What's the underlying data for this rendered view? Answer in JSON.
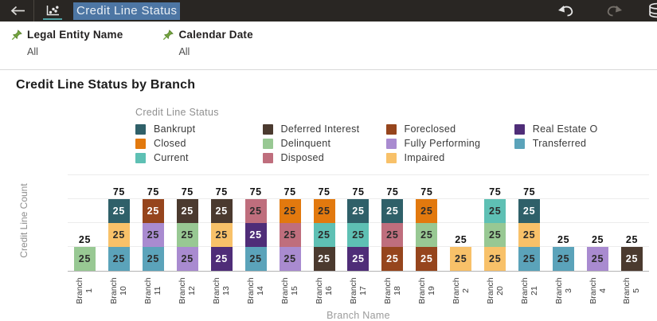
{
  "colors": {
    "topbar_bg": "#292623",
    "title_selection": "#4d76a4",
    "pin_green": "#72a43e",
    "viz_tab_underline": "#4fa3a6"
  },
  "topbar": {
    "title": "Credit Line Status",
    "icons": {
      "back": "back-arrow",
      "viz": "scatter-chart",
      "undo": "undo-arrow",
      "redo": "redo-arrow",
      "data": "database"
    }
  },
  "filters": [
    {
      "label": "Legal Entity Name",
      "value": "All"
    },
    {
      "label": "Calendar Date",
      "value": "All"
    }
  ],
  "chart_data": {
    "type": "bar",
    "stacked": true,
    "title": "Credit Line Status by Branch",
    "legend_title": "Credit Line Status",
    "legend_position": "top",
    "xlabel": "Branch Name",
    "ylabel": "Credit Line Count",
    "ylim": [
      0,
      100
    ],
    "grid": true,
    "statuses": {
      "bankrupt": {
        "label": "Bankrupt",
        "color": "#2f6069",
        "text": "#ffffff"
      },
      "closed": {
        "label": "Closed",
        "color": "#e2790e",
        "text": "#2b2b2b"
      },
      "current": {
        "label": "Current",
        "color": "#5ec0b4",
        "text": "#2b2b2b"
      },
      "deferred_interest": {
        "label": "Deferred Interest",
        "color": "#4b3a2f",
        "text": "#ffffff"
      },
      "delinquent": {
        "label": "Delinquent",
        "color": "#98c893",
        "text": "#2b2b2b"
      },
      "disposed": {
        "label": "Disposed",
        "color": "#bf6e7d",
        "text": "#2b2b2b"
      },
      "foreclosed": {
        "label": "Foreclosed",
        "color": "#96451d",
        "text": "#ffffff"
      },
      "fully_performing": {
        "label": "Fully Performing",
        "color": "#a98bd0",
        "text": "#2b2b2b"
      },
      "impaired": {
        "label": "Impaired",
        "color": "#f8c169",
        "text": "#2b2b2b"
      },
      "real_estate": {
        "label": "Real Estate O",
        "color": "#4f2d78",
        "text": "#ffffff"
      },
      "transferred": {
        "label": "Transferred",
        "color": "#5ba3ba",
        "text": "#2b2b2b"
      }
    },
    "legend_columns": [
      [
        "bankrupt",
        "closed",
        "current"
      ],
      [
        "deferred_interest",
        "delinquent",
        "disposed"
      ],
      [
        "foreclosed",
        "fully_performing",
        "impaired"
      ],
      [
        "real_estate",
        "transferred"
      ]
    ],
    "bars": [
      {
        "category": "Branch 1",
        "total": 25,
        "segments": [
          {
            "key": "delinquent",
            "value": 25
          }
        ]
      },
      {
        "category": "Branch 10",
        "total": 75,
        "segments": [
          {
            "key": "transferred",
            "value": 25
          },
          {
            "key": "impaired",
            "value": 25
          },
          {
            "key": "bankrupt",
            "value": 25
          }
        ]
      },
      {
        "category": "Branch 11",
        "total": 75,
        "segments": [
          {
            "key": "transferred",
            "value": 25
          },
          {
            "key": "fully_performing",
            "value": 25
          },
          {
            "key": "foreclosed",
            "value": 25
          }
        ]
      },
      {
        "category": "Branch 12",
        "total": 75,
        "segments": [
          {
            "key": "fully_performing",
            "value": 25
          },
          {
            "key": "delinquent",
            "value": 25
          },
          {
            "key": "deferred_interest",
            "value": 25
          }
        ]
      },
      {
        "category": "Branch 13",
        "total": 75,
        "segments": [
          {
            "key": "real_estate",
            "value": 25
          },
          {
            "key": "impaired",
            "value": 25
          },
          {
            "key": "deferred_interest",
            "value": 25
          }
        ]
      },
      {
        "category": "Branch 14",
        "total": 75,
        "segments": [
          {
            "key": "transferred",
            "value": 25
          },
          {
            "key": "real_estate",
            "value": 25
          },
          {
            "key": "disposed",
            "value": 25
          }
        ]
      },
      {
        "category": "Branch 15",
        "total": 75,
        "segments": [
          {
            "key": "fully_performing",
            "value": 25
          },
          {
            "key": "disposed",
            "value": 25
          },
          {
            "key": "closed",
            "value": 25
          }
        ]
      },
      {
        "category": "Branch 16",
        "total": 75,
        "segments": [
          {
            "key": "deferred_interest",
            "value": 25
          },
          {
            "key": "current",
            "value": 25
          },
          {
            "key": "closed",
            "value": 25
          }
        ]
      },
      {
        "category": "Branch 17",
        "total": 75,
        "segments": [
          {
            "key": "real_estate",
            "value": 25
          },
          {
            "key": "current",
            "value": 25
          },
          {
            "key": "bankrupt",
            "value": 25
          }
        ]
      },
      {
        "category": "Branch 18",
        "total": 75,
        "segments": [
          {
            "key": "foreclosed",
            "value": 25
          },
          {
            "key": "disposed",
            "value": 25
          },
          {
            "key": "bankrupt",
            "value": 25
          }
        ]
      },
      {
        "category": "Branch 19",
        "total": 75,
        "segments": [
          {
            "key": "foreclosed",
            "value": 25
          },
          {
            "key": "delinquent",
            "value": 25
          },
          {
            "key": "closed",
            "value": 25
          }
        ]
      },
      {
        "category": "Branch 2",
        "total": 25,
        "segments": [
          {
            "key": "impaired",
            "value": 25
          }
        ]
      },
      {
        "category": "Branch 20",
        "total": 75,
        "segments": [
          {
            "key": "impaired",
            "value": 25
          },
          {
            "key": "delinquent",
            "value": 25
          },
          {
            "key": "current",
            "value": 25
          }
        ]
      },
      {
        "category": "Branch 21",
        "total": 75,
        "segments": [
          {
            "key": "transferred",
            "value": 25
          },
          {
            "key": "impaired",
            "value": 25
          },
          {
            "key": "bankrupt",
            "value": 25
          }
        ]
      },
      {
        "category": "Branch 3",
        "total": 25,
        "segments": [
          {
            "key": "transferred",
            "value": 25
          }
        ]
      },
      {
        "category": "Branch 4",
        "total": 25,
        "segments": [
          {
            "key": "fully_performing",
            "value": 25
          }
        ]
      },
      {
        "category": "Branch 5",
        "total": 25,
        "segments": [
          {
            "key": "deferred_interest",
            "value": 25
          }
        ]
      }
    ]
  }
}
